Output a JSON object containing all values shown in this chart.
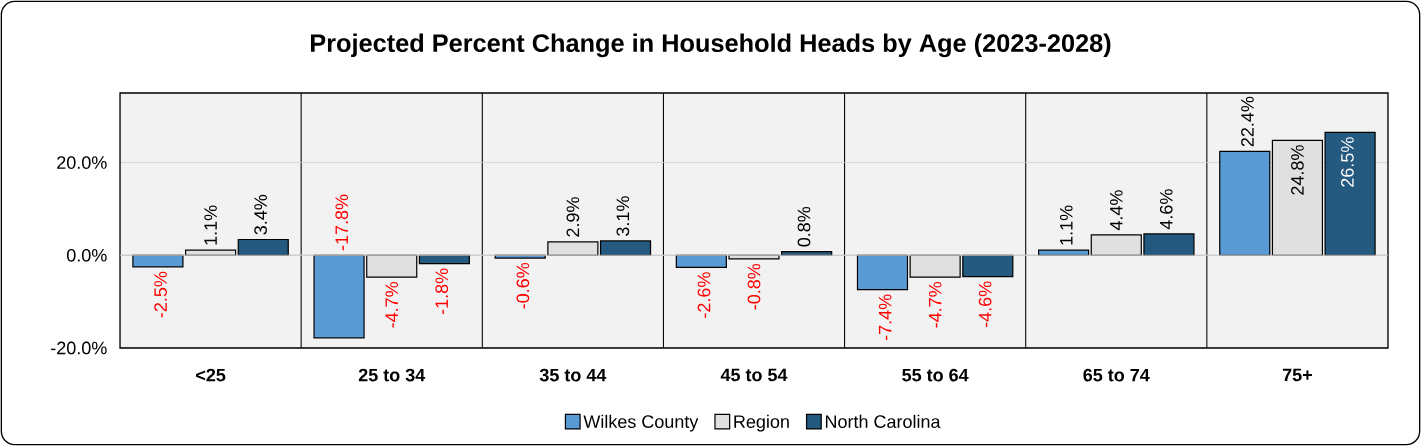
{
  "chart_data": {
    "type": "bar",
    "title": "Projected Percent Change in Household Heads by Age (2023-2028)",
    "categories": [
      "<25",
      "25 to 34",
      "35 to 44",
      "45 to 54",
      "55 to 64",
      "65 to 74",
      "75+"
    ],
    "series": [
      {
        "name": "Wilkes County",
        "color": "#5b9bd5",
        "values": [
          -2.5,
          -17.8,
          -0.6,
          -2.6,
          -7.4,
          1.1,
          22.4
        ],
        "value_labels": [
          "-2.5%",
          "-17.8%",
          "-0.6%",
          "-2.6%",
          "-7.4%",
          "1.1%",
          "22.4%"
        ]
      },
      {
        "name": "Region",
        "color": "#e0e0e0",
        "values": [
          1.1,
          -4.7,
          2.9,
          -0.8,
          -4.7,
          4.4,
          24.8
        ],
        "value_labels": [
          "1.1%",
          "-4.7%",
          "2.9%",
          "-0.8%",
          "-4.7%",
          "4.4%",
          "24.8%"
        ]
      },
      {
        "name": "North Carolina",
        "color": "#255a80",
        "values": [
          3.4,
          -1.8,
          3.1,
          0.8,
          -4.6,
          4.6,
          26.5
        ],
        "value_labels": [
          "3.4%",
          "-1.8%",
          "3.1%",
          "0.8%",
          "-4.6%",
          "4.6%",
          "26.5%"
        ]
      }
    ],
    "ylim": [
      -20,
      35
    ],
    "yticks": [
      {
        "value": -20,
        "label": "-20.0%"
      },
      {
        "value": 0,
        "label": "0.0%"
      },
      {
        "value": 20,
        "label": "20.0%"
      }
    ],
    "grid": "y",
    "legend": "bottom"
  }
}
